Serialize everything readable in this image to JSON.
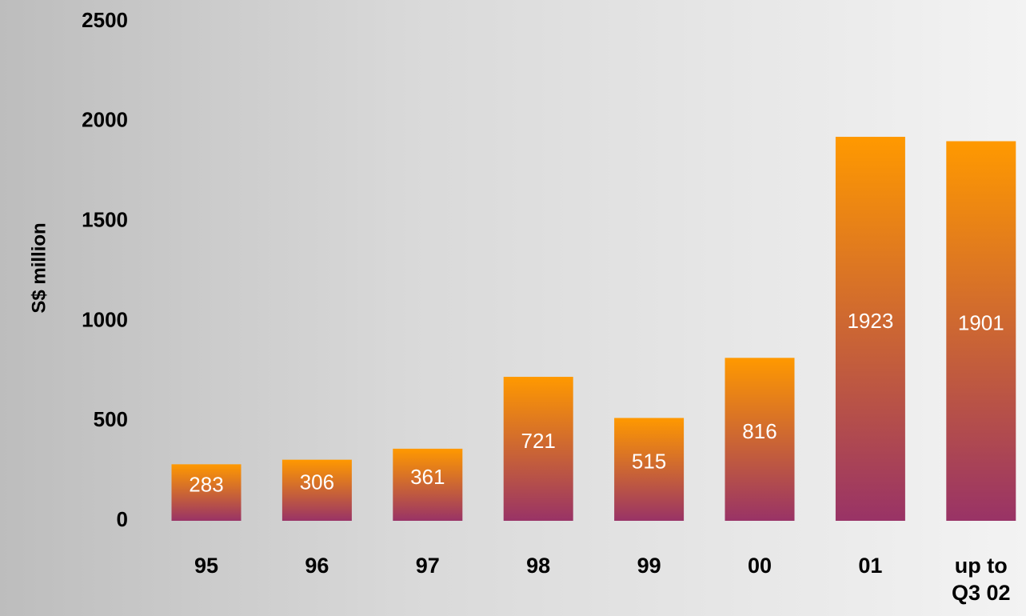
{
  "chart_data": {
    "type": "bar",
    "y_label": "S$ million",
    "categories": [
      "95",
      "96",
      "97",
      "98",
      "99",
      "00",
      "01",
      "up to Q3 02"
    ],
    "values": [
      283,
      306,
      361,
      721,
      515,
      816,
      1923,
      1901
    ],
    "gradient": [
      "#ff9900",
      "#993366"
    ],
    "ylim": [
      0,
      2500
    ],
    "yticks": [
      0,
      500,
      1000,
      1500,
      2000,
      2500
    ]
  }
}
